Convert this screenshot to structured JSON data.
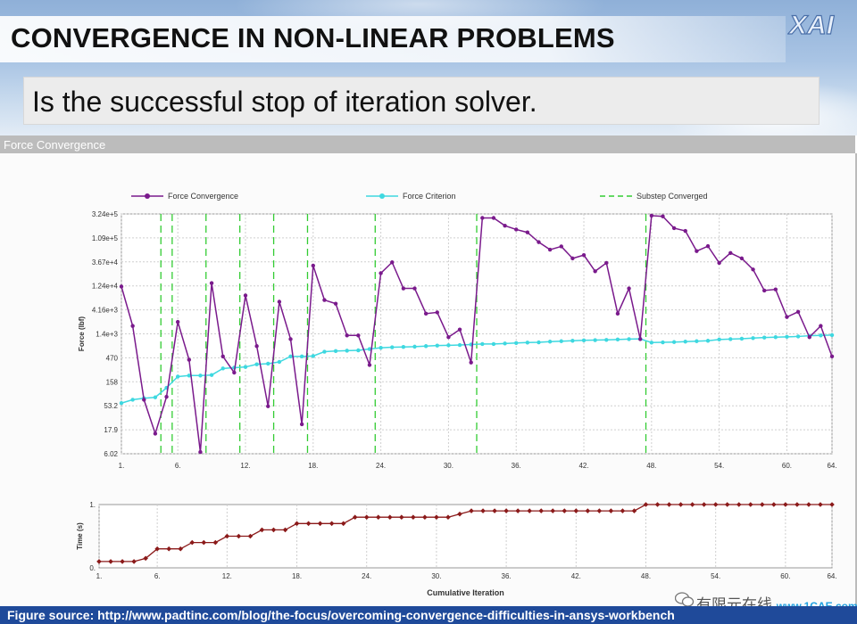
{
  "slide": {
    "title": "CONVERGENCE IN NON-LINEAR PROBLEMS",
    "subtitle": "Is the successful stop of iteration solver.",
    "footer": "Figure source: http://www.padtinc.com/blog/the-focus/overcoming-convergence-difficulties-in-ansys-workbench",
    "watermark_main": "有限元在线",
    "watermark_site": "www.1CAE.com",
    "logo_icon": "xai-logo-icon",
    "wechat_icon": "wechat-icon"
  },
  "panel": {
    "title": "Force Convergence"
  },
  "colors": {
    "force": "#7a1a8c",
    "criterion": "#3ed8e0",
    "substep": "#33cc33",
    "time": "#8b1a1a",
    "footer_bg": "#1f4a9a"
  },
  "chart_data": [
    {
      "type": "line",
      "ylabel": "Force (lbf)",
      "yscale": "log",
      "ytick_labels": [
        "6.02",
        "17.9",
        "53.2",
        "158",
        "470",
        "1.4e+3",
        "4.16e+3",
        "1.24e+4",
        "3.67e+4",
        "1.09e+5",
        "3.24e+5"
      ],
      "ylim": [
        6.02,
        324000
      ],
      "xlim": [
        1,
        64
      ],
      "xtick_labels": [
        "1.",
        "6.",
        "12.",
        "18.",
        "24.",
        "30.",
        "36.",
        "42.",
        "48.",
        "54.",
        "60.",
        "64."
      ],
      "xticks": [
        1,
        6,
        12,
        18,
        24,
        30,
        36,
        42,
        48,
        54,
        60,
        64
      ],
      "grid": true,
      "legend_position": "top",
      "series": [
        {
          "name": "Force Convergence",
          "x": [
            1,
            2,
            3,
            4,
            5,
            6,
            7,
            8,
            9,
            10,
            11,
            12,
            13,
            14,
            15,
            16,
            17,
            18,
            19,
            20,
            21,
            22,
            23,
            24,
            25,
            26,
            27,
            28,
            29,
            30,
            31,
            32,
            33,
            34,
            35,
            36,
            37,
            38,
            39,
            40,
            41,
            42,
            43,
            44,
            45,
            46,
            47,
            48,
            49,
            50,
            51,
            52,
            53,
            54,
            55,
            56,
            57,
            58,
            59,
            60,
            61,
            62,
            63,
            64
          ],
          "y": [
            12000,
            2000,
            70,
            15,
            80,
            2400,
            430,
            6.5,
            14000,
            500,
            240,
            8000,
            800,
            52,
            6000,
            1100,
            23,
            31000,
            6500,
            5500,
            1300,
            1300,
            340,
            22000,
            36000,
            11000,
            11000,
            3500,
            3700,
            1200,
            1700,
            380,
            270000,
            270000,
            190000,
            160000,
            140000,
            90000,
            64000,
            74000,
            43000,
            50000,
            24000,
            35000,
            3500,
            11000,
            1100,
            300000,
            290000,
            170000,
            150000,
            60000,
            75000,
            35000,
            55000,
            43000,
            26000,
            10000,
            10500,
            3000,
            3800,
            1200,
            2000,
            500
          ]
        },
        {
          "name": "Force Criterion",
          "x": [
            1,
            2,
            3,
            4,
            5,
            6,
            7,
            8,
            9,
            10,
            11,
            12,
            13,
            14,
            15,
            16,
            17,
            18,
            19,
            20,
            21,
            22,
            23,
            24,
            25,
            26,
            27,
            28,
            29,
            30,
            31,
            32,
            33,
            34,
            35,
            36,
            37,
            38,
            39,
            40,
            41,
            42,
            43,
            44,
            45,
            46,
            47,
            48,
            49,
            50,
            51,
            52,
            53,
            54,
            55,
            56,
            57,
            58,
            59,
            60,
            61,
            62,
            63,
            64
          ],
          "y": [
            60,
            70,
            75,
            78,
            120,
            200,
            210,
            210,
            215,
            290,
            300,
            310,
            350,
            360,
            390,
            500,
            500,
            510,
            620,
            640,
            650,
            660,
            700,
            740,
            760,
            770,
            780,
            800,
            820,
            830,
            840,
            860,
            880,
            880,
            900,
            920,
            940,
            950,
            980,
            1000,
            1020,
            1040,
            1050,
            1060,
            1080,
            1100,
            1110,
            940,
            950,
            960,
            980,
            1000,
            1020,
            1080,
            1100,
            1120,
            1150,
            1180,
            1200,
            1220,
            1240,
            1280,
            1300,
            1320
          ]
        }
      ],
      "substep_converged_at": [
        4,
        5,
        8,
        11,
        14,
        17,
        23,
        32,
        47
      ],
      "substep_series_name": "Substep Converged"
    },
    {
      "type": "line",
      "ylabel": "Time (s)",
      "xlabel": "Cumulative Iteration",
      "ylim": [
        0,
        1
      ],
      "ytick_labels": [
        "0.",
        "1."
      ],
      "xlim": [
        1,
        64
      ],
      "xticks": [
        1,
        6,
        12,
        18,
        24,
        30,
        36,
        42,
        48,
        54,
        60,
        64
      ],
      "xtick_labels": [
        "1.",
        "6.",
        "12.",
        "18.",
        "24.",
        "30.",
        "36.",
        "42.",
        "48.",
        "54.",
        "60.",
        "64."
      ],
      "series": [
        {
          "name": "Time",
          "x": [
            1,
            2,
            3,
            4,
            5,
            6,
            7,
            8,
            9,
            10,
            11,
            12,
            13,
            14,
            15,
            16,
            17,
            18,
            19,
            20,
            21,
            22,
            23,
            24,
            25,
            26,
            27,
            28,
            29,
            30,
            31,
            32,
            33,
            34,
            35,
            36,
            37,
            38,
            39,
            40,
            41,
            42,
            43,
            44,
            45,
            46,
            47,
            48,
            49,
            50,
            51,
            52,
            53,
            54,
            55,
            56,
            57,
            58,
            59,
            60,
            61,
            62,
            63,
            64
          ],
          "y": [
            0.1,
            0.1,
            0.1,
            0.1,
            0.15,
            0.3,
            0.3,
            0.3,
            0.4,
            0.4,
            0.4,
            0.5,
            0.5,
            0.5,
            0.6,
            0.6,
            0.6,
            0.7,
            0.7,
            0.7,
            0.7,
            0.7,
            0.8,
            0.8,
            0.8,
            0.8,
            0.8,
            0.8,
            0.8,
            0.8,
            0.8,
            0.85,
            0.9,
            0.9,
            0.9,
            0.9,
            0.9,
            0.9,
            0.9,
            0.9,
            0.9,
            0.9,
            0.9,
            0.9,
            0.9,
            0.9,
            0.9,
            1,
            1,
            1,
            1,
            1,
            1,
            1,
            1,
            1,
            1,
            1,
            1,
            1,
            1,
            1,
            1,
            1
          ]
        }
      ]
    }
  ]
}
